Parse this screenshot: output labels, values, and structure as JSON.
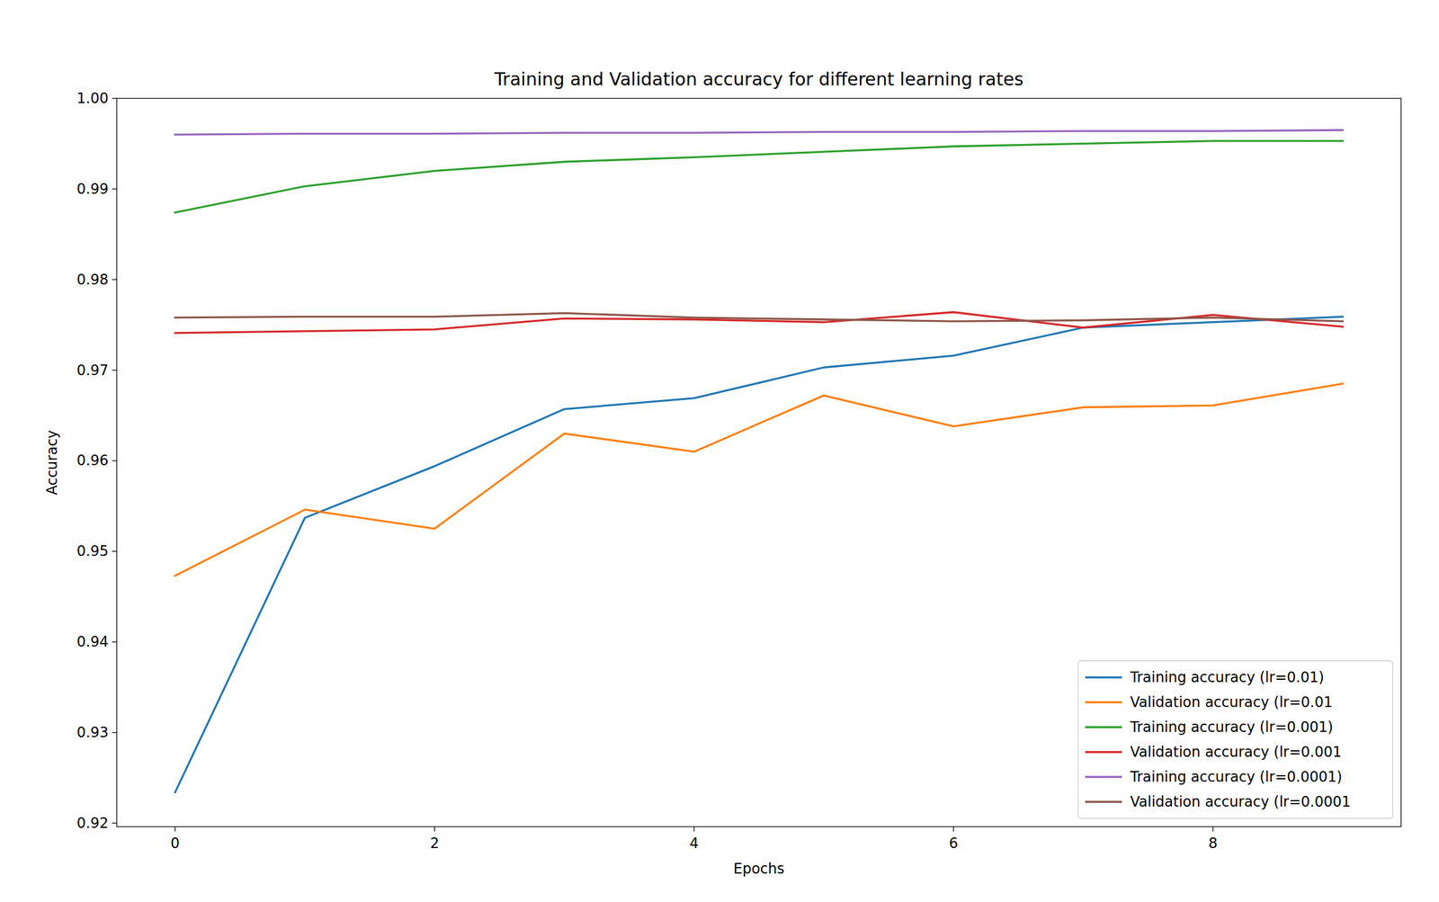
{
  "chart_data": {
    "type": "line",
    "title": "Training and Validation accuracy for different learning rates",
    "x_label": "Epochs",
    "y_label": "Accuracy",
    "x": [
      0,
      1,
      2,
      3,
      4,
      5,
      6,
      7,
      8,
      9
    ],
    "xlim": [
      -0.45,
      9.45
    ],
    "xticks": [
      0,
      2,
      4,
      6,
      8
    ],
    "ylim": [
      0.9196,
      1.0
    ],
    "yticks": [
      0.92,
      0.93,
      0.94,
      0.95,
      0.96,
      0.97,
      0.98,
      0.99,
      {
        "value": 1,
        "label": "1.00"
      }
    ],
    "grid": false,
    "legend": "lower right",
    "series": [
      {
        "name": "Training accuracy (lr=0.01)",
        "color": "#1f77b4",
        "values": [
          0.9234,
          0.9537,
          0.9594,
          0.9657,
          0.9669,
          0.9703,
          0.9716,
          0.9747,
          0.9753,
          0.9759
        ]
      },
      {
        "name": "Validation accuracy (lr=0.01",
        "color": "#ff7f0e",
        "values": [
          0.9473,
          0.9546,
          0.9525,
          0.963,
          0.961,
          0.9672,
          0.9638,
          0.9659,
          0.9661,
          0.9685
        ]
      },
      {
        "name": "Training accuracy (lr=0.001)",
        "color": "#2ca02c",
        "values": [
          0.9874,
          0.9903,
          0.992,
          0.993,
          0.9935,
          0.9941,
          0.9947,
          0.995,
          0.9953,
          0.9953
        ]
      },
      {
        "name": "Validation accuracy (lr=0.001",
        "color": "#d62728",
        "values": [
          0.9741,
          0.9743,
          0.9745,
          0.9757,
          0.9756,
          0.9753,
          0.9764,
          0.9747,
          0.9761,
          0.9748
        ]
      },
      {
        "name": "Training accuracy (lr=0.0001)",
        "color": "#9467bd",
        "values": [
          0.996,
          0.9961,
          0.9961,
          0.9962,
          0.9962,
          0.9963,
          0.9963,
          0.9964,
          0.9964,
          0.9965
        ]
      },
      {
        "name": "Validation accuracy (lr=0.0001",
        "color": "#8c564b",
        "values": [
          0.9758,
          0.9759,
          0.9759,
          0.9763,
          0.9758,
          0.9756,
          0.9754,
          0.9755,
          0.9758,
          0.9754
        ]
      }
    ]
  }
}
